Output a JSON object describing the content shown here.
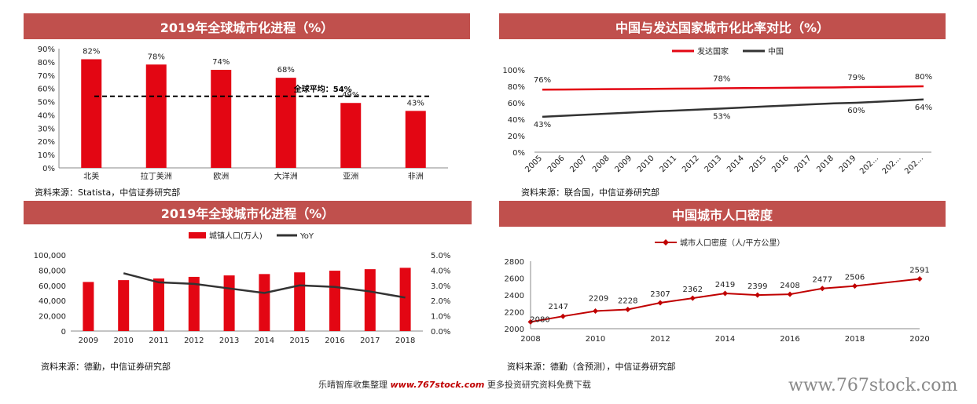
{
  "charts": [
    {
      "title": "2019年全球城市化进程（%）",
      "source": "资料来源：Statista，中信证券研究部",
      "chart_data": {
        "type": "bar",
        "categories": [
          "北美",
          "拉丁美洲",
          "欧洲",
          "大洋洲",
          "亚洲",
          "非洲"
        ],
        "values": [
          82,
          78,
          74,
          68,
          49,
          43
        ],
        "value_labels": [
          "82%",
          "78%",
          "74%",
          "68%",
          "49%",
          "43%"
        ],
        "ylim": [
          0,
          90
        ],
        "yticks": [
          "0%",
          "10%",
          "20%",
          "30%",
          "40%",
          "50%",
          "60%",
          "70%",
          "80%",
          "90%"
        ],
        "reference_line": {
          "value": 54,
          "label": "全球平均：54%"
        },
        "colors": {
          "bar": "#e30613",
          "reference": "#000000"
        }
      }
    },
    {
      "title": "中国与发达国家城市化比率对比（%）",
      "source": "资料来源：联合国，中信证券研究部",
      "chart_data": {
        "type": "line",
        "x": [
          "2005",
          "2006",
          "2007",
          "2008",
          "2009",
          "2010",
          "2011",
          "2012",
          "2013",
          "2014",
          "2015",
          "2016",
          "2017",
          "2018",
          "2019",
          "202...",
          "202...",
          "202..."
        ],
        "ylim": [
          0,
          100
        ],
        "yticks": [
          "0%",
          "20%",
          "40%",
          "60%",
          "80%",
          "100%"
        ],
        "legend_position": "top-center",
        "series": [
          {
            "name": "发达国家",
            "color": "#e30613",
            "values": [
              76,
              76.1,
              76.3,
              76.5,
              76.7,
              76.9,
              77.1,
              77.3,
              77.6,
              77.8,
              78.0,
              78.2,
              78.4,
              78.6,
              79,
              79.3,
              79.6,
              80
            ],
            "labels": [
              {
                "index": 0,
                "text": "76%"
              },
              {
                "index": 8,
                "text": "78%"
              },
              {
                "index": 14,
                "text": "79%"
              },
              {
                "index": 17,
                "text": "80%"
              }
            ]
          },
          {
            "name": "中国",
            "color": "#333333",
            "values": [
              43,
              44.3,
              45.6,
              46.9,
              48.2,
              49.5,
              50.6,
              51.8,
              53,
              54.3,
              55.6,
              56.8,
              58.1,
              59.3,
              60,
              61.3,
              62.6,
              64
            ],
            "labels": [
              {
                "index": 0,
                "text": "43%"
              },
              {
                "index": 8,
                "text": "53%"
              },
              {
                "index": 14,
                "text": "60%"
              },
              {
                "index": 17,
                "text": "64%"
              }
            ]
          }
        ]
      }
    },
    {
      "title": "2019年全球城市化进程（%）",
      "source": "资料来源：德勤，中信证券研究部",
      "chart_data": {
        "type": "bar",
        "categories": [
          "2009",
          "2010",
          "2011",
          "2012",
          "2013",
          "2014",
          "2015",
          "2016",
          "2017",
          "2018"
        ],
        "series": [
          {
            "name": "城镇人口(万人)",
            "type": "bar",
            "color": "#e30613",
            "values": [
              64500,
              66900,
              69100,
              71200,
              73100,
              74900,
              77100,
              79300,
              81300,
              83100
            ]
          },
          {
            "name": "YoY",
            "type": "line",
            "axis": "right",
            "color": "#333333",
            "values": [
              null,
              3.8,
              3.2,
              3.1,
              2.8,
              2.5,
              3.0,
              2.9,
              2.6,
              2.2
            ]
          }
        ],
        "ylim": [
          0,
          100000
        ],
        "yticks": [
          "0",
          "20,000",
          "40,000",
          "60,000",
          "80,000",
          "100,000"
        ],
        "y2lim": [
          0,
          5
        ],
        "y2ticks": [
          "0.0%",
          "1.0%",
          "2.0%",
          "3.0%",
          "4.0%",
          "5.0%"
        ],
        "legend_position": "top-center"
      }
    },
    {
      "title": "中国城市人口密度",
      "source": "资料来源：德勤（含预测），中信证券研究部",
      "chart_data": {
        "type": "line",
        "x": [
          2008,
          2009,
          2010,
          2011,
          2012,
          2013,
          2014,
          2015,
          2016,
          2017,
          2018,
          2020
        ],
        "xticks": [
          "2008",
          "2010",
          "2012",
          "2014",
          "2016",
          "2018",
          "2020"
        ],
        "xlim": [
          2008,
          2020
        ],
        "ylim": [
          2000,
          2800
        ],
        "yticks": [
          "2000",
          "2200",
          "2400",
          "2600",
          "2800"
        ],
        "legend_position": "top-center",
        "series": [
          {
            "name": "城市人口密度（人/平方公里）",
            "color": "#c00000",
            "values": [
              2080,
              2147,
              2209,
              2228,
              2307,
              2362,
              2419,
              2399,
              2408,
              2477,
              2506,
              2591
            ],
            "labels": [
              "2080",
              "2147",
              "2209",
              "2228",
              "2307",
              "2362",
              "2419",
              "2399",
              "2408",
              "2477",
              "2506",
              "2591"
            ]
          }
        ]
      }
    }
  ],
  "footer": {
    "text_before": "乐晴智库收集整理",
    "site": "www.767stock.com",
    "text_after": "更多投资研究资料免费下载"
  },
  "watermark": "www.767stock.com"
}
